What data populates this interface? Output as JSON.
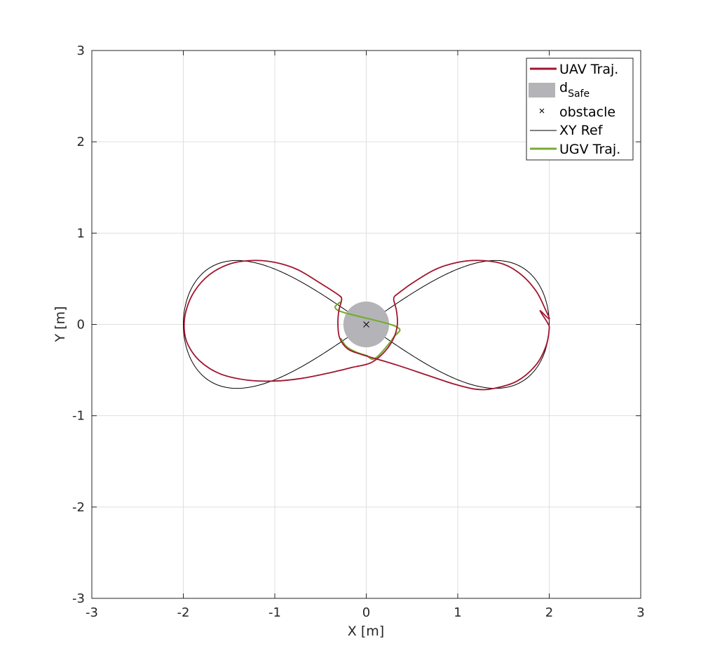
{
  "chart_data": {
    "type": "line",
    "title": "",
    "xlabel": "X [m]",
    "ylabel": "Y [m]",
    "xlim": [
      -3,
      3
    ],
    "ylim": [
      -3,
      3
    ],
    "xticks": [
      "-3",
      "-2",
      "-1",
      "0",
      "1",
      "2",
      "3"
    ],
    "yticks": [
      "-3",
      "-2",
      "-1",
      "0",
      "1",
      "2",
      "3"
    ],
    "grid": true,
    "legend_position": "top-right",
    "legend": [
      {
        "label": "UAV Traj.",
        "marker": "line",
        "color": "#a2142f"
      },
      {
        "label": "d",
        "subscript": "Safe",
        "marker": "patch",
        "color": "#b4b4b8"
      },
      {
        "label": "obstacle",
        "marker": "x",
        "color": "#000000"
      },
      {
        "label": "XY Ref",
        "marker": "thin-line",
        "color": "#000000"
      },
      {
        "label": "UGV Traj.",
        "marker": "line",
        "color": "#77ac30"
      }
    ],
    "obstacle": {
      "x": 0,
      "y": 0,
      "d_safe_radius": 0.25
    },
    "reference_figure_eight": {
      "amplitude_x": 2.0,
      "amplitude_y": 0.7,
      "center": [
        0,
        0
      ]
    },
    "series": [
      {
        "name": "UAV Traj.",
        "color": "#a2142f",
        "points": [
          [
            0.31,
            0.31
          ],
          [
            0.5,
            0.45
          ],
          [
            0.75,
            0.6
          ],
          [
            1.0,
            0.68
          ],
          [
            1.25,
            0.7
          ],
          [
            1.5,
            0.66
          ],
          [
            1.7,
            0.54
          ],
          [
            1.86,
            0.36
          ],
          [
            1.96,
            0.16
          ],
          [
            2.0,
            0.06
          ],
          [
            1.9,
            0.15
          ],
          [
            1.98,
            0.02
          ],
          [
            2.0,
            -0.05
          ],
          [
            1.96,
            -0.25
          ],
          [
            1.85,
            -0.45
          ],
          [
            1.65,
            -0.62
          ],
          [
            1.4,
            -0.7
          ],
          [
            1.2,
            -0.71
          ],
          [
            0.95,
            -0.65
          ],
          [
            0.65,
            -0.55
          ],
          [
            0.35,
            -0.45
          ],
          [
            0.12,
            -0.38
          ],
          [
            -0.05,
            -0.33
          ],
          [
            -0.2,
            -0.27
          ],
          [
            -0.29,
            -0.15
          ],
          [
            -0.31,
            0.0
          ],
          [
            -0.3,
            0.15
          ],
          [
            -0.27,
            0.27
          ],
          [
            -0.3,
            0.32
          ],
          [
            -0.5,
            0.45
          ],
          [
            -0.75,
            0.6
          ],
          [
            -1.0,
            0.68
          ],
          [
            -1.25,
            0.7
          ],
          [
            -1.5,
            0.66
          ],
          [
            -1.72,
            0.54
          ],
          [
            -1.88,
            0.36
          ],
          [
            -1.97,
            0.15
          ],
          [
            -1.99,
            -0.05
          ],
          [
            -1.95,
            -0.22
          ],
          [
            -1.82,
            -0.4
          ],
          [
            -1.6,
            -0.54
          ],
          [
            -1.3,
            -0.61
          ],
          [
            -1.0,
            -0.62
          ],
          [
            -0.7,
            -0.59
          ],
          [
            -0.4,
            -0.53
          ],
          [
            -0.15,
            -0.47
          ],
          [
            0.05,
            -0.42
          ],
          [
            0.2,
            -0.3
          ],
          [
            0.3,
            -0.15
          ],
          [
            0.34,
            0.0
          ],
          [
            0.33,
            0.15
          ],
          [
            0.3,
            0.27
          ],
          [
            0.31,
            0.31
          ]
        ]
      },
      {
        "name": "UGV Traj.",
        "color": "#77ac30",
        "points": [
          [
            -0.28,
            -0.15
          ],
          [
            -0.22,
            -0.24
          ],
          [
            -0.12,
            -0.3
          ],
          [
            0.0,
            -0.34
          ],
          [
            0.1,
            -0.37
          ],
          [
            0.3,
            -0.14
          ],
          [
            0.32,
            -0.02
          ],
          [
            -0.3,
            0.15
          ],
          [
            -0.28,
            0.25
          ]
        ]
      }
    ]
  }
}
